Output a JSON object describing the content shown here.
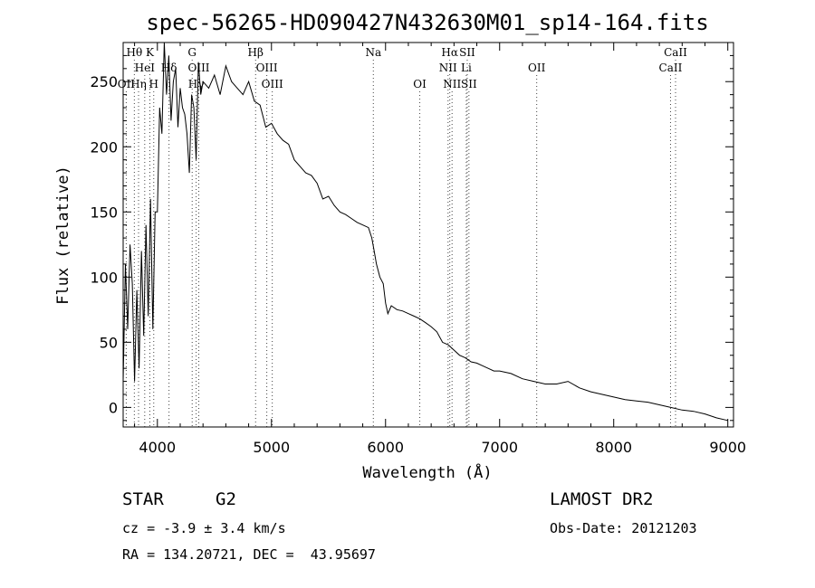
{
  "chart_data": {
    "type": "line",
    "title": "spec-56265-HD090427N432630M01_sp14-164.fits",
    "xlabel": "Wavelength (Å)",
    "ylabel": "Flux (relative)",
    "xlim": [
      3700,
      9050
    ],
    "ylim": [
      -15,
      280
    ],
    "xticks": [
      4000,
      5000,
      6000,
      7000,
      8000,
      9000
    ],
    "yticks": [
      0,
      50,
      100,
      150,
      200,
      250
    ],
    "grid": false,
    "series": [
      {
        "x": [
          3700,
          3720,
          3740,
          3760,
          3780,
          3800,
          3820,
          3840,
          3860,
          3880,
          3900,
          3920,
          3940,
          3960,
          3980,
          4000,
          4020,
          4040,
          4060,
          4080,
          4100,
          4120,
          4140,
          4160,
          4180,
          4200,
          4220,
          4240,
          4260,
          4280,
          4300,
          4320,
          4340,
          4360,
          4380,
          4400,
          4450,
          4500,
          4550,
          4600,
          4650,
          4700,
          4750,
          4800,
          4850,
          4900,
          4950,
          5000,
          5050,
          5100,
          5150,
          5200,
          5250,
          5300,
          5350,
          5400,
          5450,
          5500,
          5550,
          5600,
          5650,
          5700,
          5750,
          5800,
          5850,
          5880,
          5900,
          5920,
          5950,
          5980,
          6000,
          6020,
          6050,
          6100,
          6150,
          6200,
          6250,
          6300,
          6350,
          6400,
          6450,
          6500,
          6550,
          6600,
          6650,
          6700,
          6750,
          6800,
          6850,
          6900,
          6950,
          7000,
          7100,
          7200,
          7300,
          7400,
          7500,
          7600,
          7700,
          7800,
          7900,
          8000,
          8100,
          8200,
          8300,
          8400,
          8500,
          8600,
          8700,
          8800,
          8900,
          9000
        ],
        "values": [
          20,
          110,
          60,
          125,
          95,
          20,
          90,
          30,
          120,
          55,
          140,
          70,
          160,
          60,
          150,
          150,
          230,
          210,
          280,
          240,
          270,
          220,
          250,
          260,
          215,
          245,
          230,
          225,
          210,
          180,
          240,
          230,
          190,
          265,
          240,
          250,
          245,
          255,
          240,
          262,
          250,
          245,
          240,
          250,
          235,
          232,
          215,
          218,
          210,
          205,
          202,
          190,
          185,
          180,
          178,
          172,
          160,
          162,
          155,
          150,
          148,
          145,
          142,
          140,
          138,
          130,
          120,
          110,
          100,
          95,
          80,
          72,
          78,
          75,
          74,
          72,
          70,
          68,
          65,
          62,
          58,
          50,
          48,
          44,
          40,
          38,
          35,
          34,
          32,
          30,
          28,
          28,
          26,
          22,
          20,
          18,
          18,
          20,
          15,
          12,
          10,
          8,
          6,
          5,
          4,
          2,
          0,
          -2,
          -3,
          -5,
          -8,
          -10
        ]
      }
    ],
    "line_markers": [
      {
        "label": "Hθ",
        "x": 3798,
        "row": 1
      },
      {
        "label": "K",
        "x": 3934,
        "row": 1
      },
      {
        "label": "HeI",
        "x": 3889,
        "row": 2
      },
      {
        "label": "Hδ",
        "x": 4102,
        "row": 2
      },
      {
        "label": "OII",
        "x": 3727,
        "row": 3
      },
      {
        "label": "Hη",
        "x": 3835,
        "row": 3
      },
      {
        "label": "H",
        "x": 3968,
        "row": 3
      },
      {
        "label": "G",
        "x": 4305,
        "row": 1
      },
      {
        "label": "OIII",
        "x": 4363,
        "row": 2
      },
      {
        "label": "Hγ",
        "x": 4340,
        "row": 3
      },
      {
        "label": "Hβ",
        "x": 4861,
        "row": 1
      },
      {
        "label": "OIII",
        "x": 4959,
        "row": 2
      },
      {
        "label": "OIII",
        "x": 5007,
        "row": 3
      },
      {
        "label": "Na",
        "x": 5893,
        "row": 1
      },
      {
        "label": "OI",
        "x": 6300,
        "row": 3
      },
      {
        "label": "Hα",
        "x": 6563,
        "row": 1
      },
      {
        "label": "SII",
        "x": 6716,
        "row": 1
      },
      {
        "label": "NII",
        "x": 6548,
        "row": 2
      },
      {
        "label": "Li",
        "x": 6708,
        "row": 2
      },
      {
        "label": "NII",
        "x": 6583,
        "row": 3
      },
      {
        "label": "SII",
        "x": 6731,
        "row": 3
      },
      {
        "label": "OII",
        "x": 7325,
        "row": 2
      },
      {
        "label": "CaII",
        "x": 8542,
        "row": 1
      },
      {
        "label": "CaII",
        "x": 8498,
        "row": 2
      }
    ]
  },
  "info": {
    "class": "STAR",
    "subclass": "G2",
    "survey": "LAMOST DR2",
    "cz": "cz = -3.9 ± 3.4 km/s",
    "obs_date": "Obs-Date: 20121203",
    "coords": "RA = 134.20721, DEC =  43.95697"
  }
}
